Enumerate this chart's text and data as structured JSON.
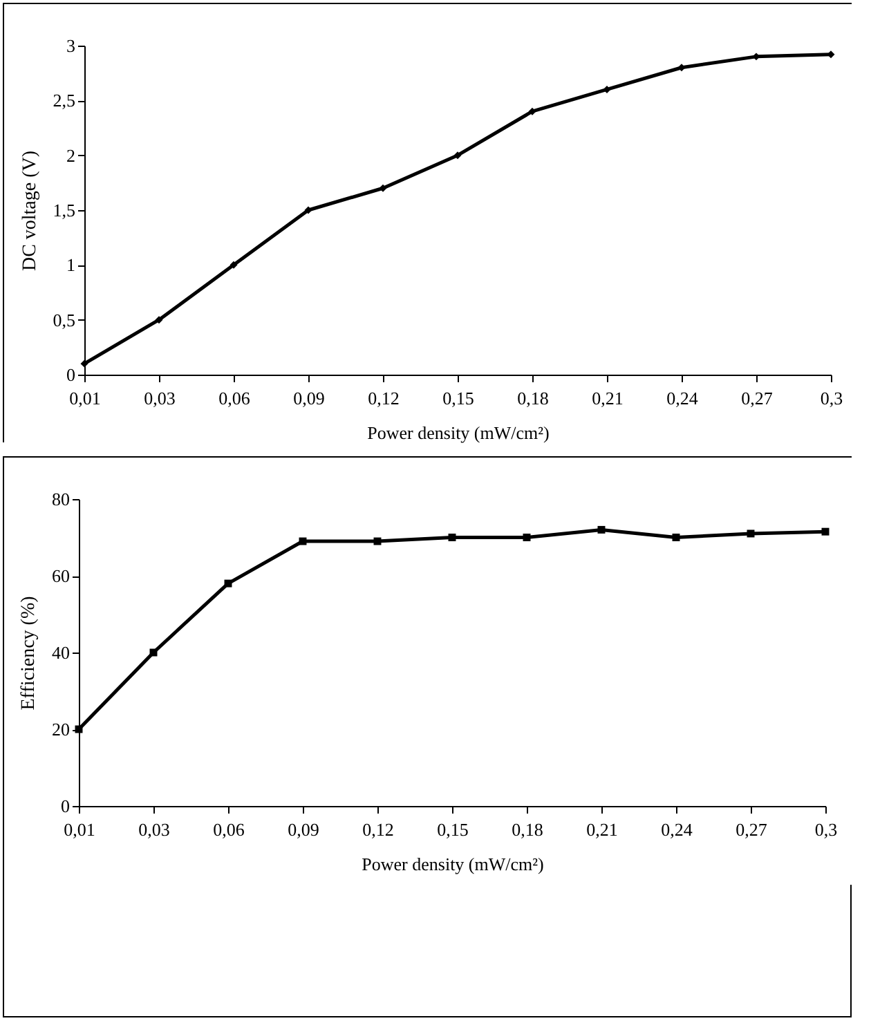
{
  "chart_data": [
    {
      "type": "line",
      "xlabel": "Power density (mW/cm²)",
      "ylabel": "DC voltage (V)",
      "categories": [
        "0,01",
        "0,03",
        "0,06",
        "0,09",
        "0,12",
        "0,15",
        "0,18",
        "0,21",
        "0,24",
        "0,27",
        "0,3"
      ],
      "series": [
        {
          "color": "#000000",
          "values": [
            0.1,
            0.5,
            1.0,
            1.5,
            1.7,
            2.0,
            2.4,
            2.6,
            2.8,
            2.9,
            2.92
          ]
        }
      ],
      "ylim": [
        0,
        3
      ],
      "yticks": [
        0,
        {
          "value": 0.5,
          "label": "0,5"
        },
        1,
        {
          "value": 1.5,
          "label": "1,5"
        },
        2,
        {
          "value": 2.5,
          "label": "2,5"
        },
        3
      ],
      "grid": false,
      "marker": "diamond",
      "line_style": "solid"
    },
    {
      "type": "line",
      "xlabel": "Power density (mW/cm²)",
      "ylabel": "Efficiency  (%)",
      "categories": [
        "0,01",
        "0,03",
        "0,06",
        "0,09",
        "0,12",
        "0,15",
        "0,18",
        "0,21",
        "0,24",
        "0,27",
        "0,3"
      ],
      "series": [
        {
          "color": "#000000",
          "values": [
            20,
            40,
            58,
            69,
            69,
            70,
            70,
            72,
            70,
            71,
            71.5
          ]
        }
      ],
      "ylim": [
        0,
        80
      ],
      "yticks": [
        0,
        20,
        40,
        60,
        80
      ],
      "grid": false,
      "marker": "square",
      "line_style": "solid"
    }
  ]
}
